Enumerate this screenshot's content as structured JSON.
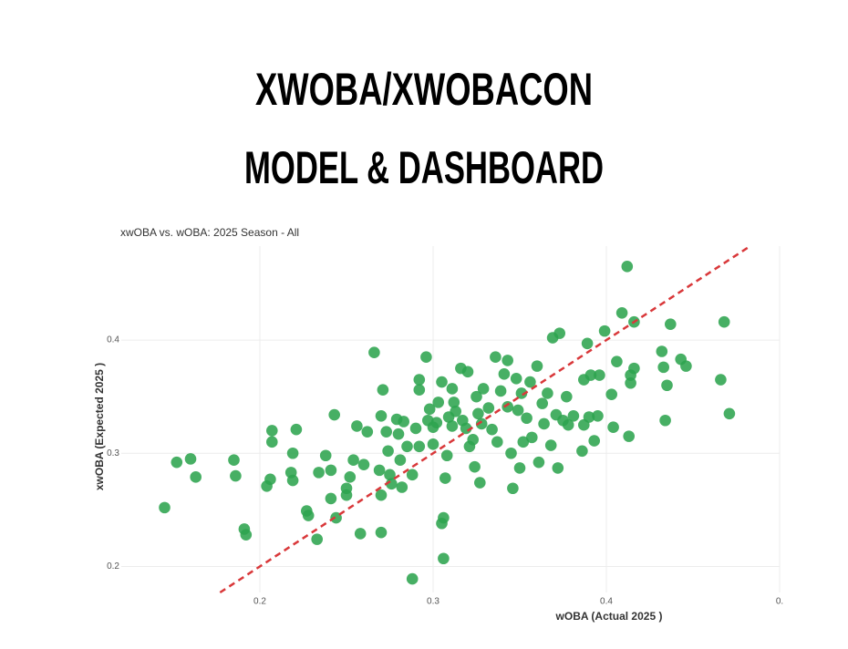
{
  "header": {
    "lines": [
      "XWOBA/XWOBACON",
      "MODEL & DASHBOARD"
    ]
  },
  "chart_data": {
    "type": "scatter",
    "title": "xwOBA vs. wOBA: 2025 Season - All",
    "x_label": "wOBA (Actual 2025 )",
    "y_label": "xwOBA (Expected 2025 )",
    "color": "#2ea44f",
    "identity_line": true,
    "identity_color": "#d9383a",
    "grid": true,
    "xlim": [
      0.12,
      0.5
    ],
    "ylim": [
      0.177,
      0.483
    ],
    "xticks": [
      0.2,
      0.3,
      0.4,
      {
        "value": 0.5,
        "label": "0."
      }
    ],
    "yticks": [
      0.2,
      0.3,
      0.4
    ],
    "x": [
      0.145,
      0.152,
      0.16,
      0.163,
      0.185,
      0.186,
      0.191,
      0.192,
      0.204,
      0.206,
      0.207,
      0.207,
      0.219,
      0.221,
      0.218,
      0.219,
      0.227,
      0.228,
      0.233,
      0.234,
      0.238,
      0.241,
      0.241,
      0.243,
      0.244,
      0.25,
      0.25,
      0.252,
      0.254,
      0.256,
      0.258,
      0.26,
      0.262,
      0.266,
      0.269,
      0.27,
      0.27,
      0.27,
      0.271,
      0.273,
      0.274,
      0.275,
      0.276,
      0.279,
      0.28,
      0.281,
      0.282,
      0.283,
      0.285,
      0.288,
      0.288,
      0.29,
      0.292,
      0.292,
      0.292,
      0.296,
      0.297,
      0.298,
      0.3,
      0.3,
      0.302,
      0.303,
      0.305,
      0.305,
      0.306,
      0.306,
      0.307,
      0.308,
      0.309,
      0.311,
      0.311,
      0.312,
      0.313,
      0.316,
      0.317,
      0.319,
      0.32,
      0.321,
      0.323,
      0.324,
      0.325,
      0.326,
      0.327,
      0.328,
      0.329,
      0.332,
      0.334,
      0.336,
      0.337,
      0.339,
      0.341,
      0.343,
      0.343,
      0.345,
      0.346,
      0.348,
      0.349,
      0.35,
      0.351,
      0.352,
      0.354,
      0.356,
      0.357,
      0.36,
      0.361,
      0.363,
      0.364,
      0.366,
      0.368,
      0.369,
      0.371,
      0.372,
      0.373,
      0.375,
      0.377,
      0.378,
      0.381,
      0.386,
      0.387,
      0.387,
      0.389,
      0.39,
      0.391,
      0.393,
      0.395,
      0.396,
      0.399,
      0.403,
      0.404,
      0.406,
      0.409,
      0.412,
      0.413,
      0.414,
      0.414,
      0.416,
      0.416,
      0.432,
      0.433,
      0.434,
      0.435,
      0.437,
      0.443,
      0.446,
      0.466,
      0.468,
      0.471
    ],
    "values": [
      0.252,
      0.292,
      0.295,
      0.279,
      0.294,
      0.28,
      0.233,
      0.228,
      0.271,
      0.277,
      0.31,
      0.32,
      0.3,
      0.321,
      0.283,
      0.276,
      0.249,
      0.245,
      0.224,
      0.283,
      0.298,
      0.285,
      0.26,
      0.334,
      0.243,
      0.269,
      0.263,
      0.279,
      0.294,
      0.324,
      0.229,
      0.29,
      0.319,
      0.389,
      0.285,
      0.263,
      0.333,
      0.23,
      0.356,
      0.319,
      0.302,
      0.281,
      0.273,
      0.33,
      0.317,
      0.294,
      0.27,
      0.328,
      0.306,
      0.189,
      0.281,
      0.322,
      0.356,
      0.365,
      0.306,
      0.385,
      0.329,
      0.339,
      0.323,
      0.308,
      0.327,
      0.345,
      0.363,
      0.238,
      0.243,
      0.207,
      0.278,
      0.298,
      0.332,
      0.324,
      0.357,
      0.345,
      0.337,
      0.375,
      0.329,
      0.322,
      0.372,
      0.306,
      0.312,
      0.288,
      0.35,
      0.335,
      0.274,
      0.326,
      0.357,
      0.34,
      0.321,
      0.385,
      0.31,
      0.355,
      0.37,
      0.382,
      0.341,
      0.3,
      0.269,
      0.366,
      0.338,
      0.287,
      0.353,
      0.31,
      0.331,
      0.363,
      0.314,
      0.377,
      0.292,
      0.344,
      0.326,
      0.353,
      0.307,
      0.402,
      0.334,
      0.287,
      0.406,
      0.329,
      0.35,
      0.325,
      0.333,
      0.302,
      0.365,
      0.325,
      0.397,
      0.332,
      0.369,
      0.311,
      0.333,
      0.369,
      0.408,
      0.352,
      0.323,
      0.381,
      0.424,
      0.465,
      0.315,
      0.362,
      0.369,
      0.375,
      0.416,
      0.39,
      0.376,
      0.329,
      0.36,
      0.414,
      0.383,
      0.377,
      0.365,
      0.416,
      0.335
    ]
  }
}
